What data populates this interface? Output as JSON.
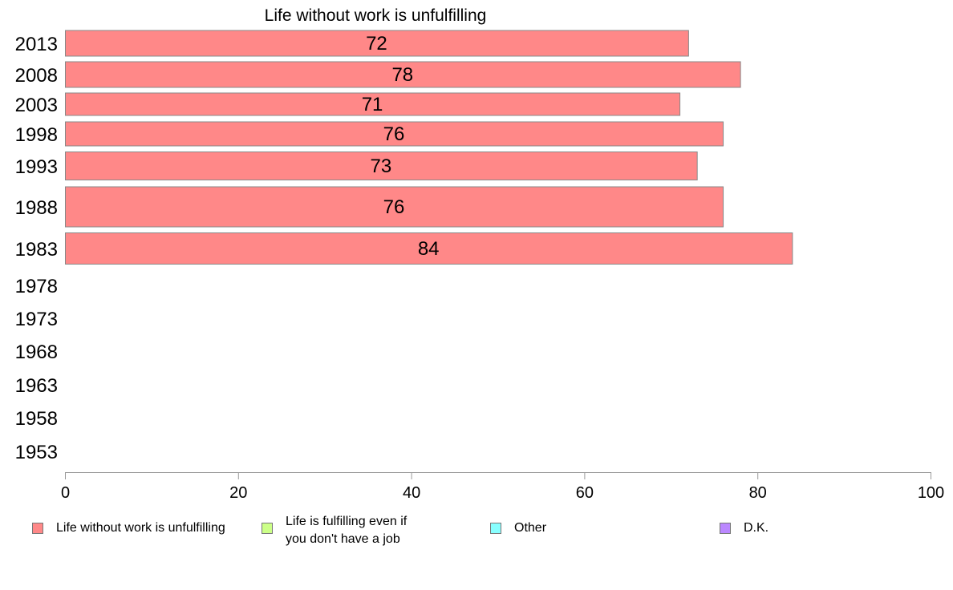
{
  "chart_data": {
    "type": "bar",
    "orientation": "horizontal",
    "title": "Life without work is unfulfilling",
    "categories": [
      "2013",
      "2008",
      "2003",
      "1998",
      "1993",
      "1988",
      "1983",
      "1978",
      "1973",
      "1968",
      "1963",
      "1958",
      "1953"
    ],
    "series": [
      {
        "name": "Life without work is unfulfilling",
        "color": "#ff8888",
        "values": [
          72,
          78,
          71,
          76,
          73,
          76,
          84,
          null,
          null,
          null,
          null,
          null,
          null
        ],
        "labels": [
          "72",
          "78",
          "71",
          "76",
          "73",
          "76",
          "84",
          "",
          "",
          "",
          "",
          "",
          ""
        ]
      }
    ],
    "xlim": [
      0,
      100
    ],
    "xticks": [
      "0",
      "20",
      "40",
      "60",
      "80",
      "100"
    ],
    "grid": false,
    "legend_position": "bottom",
    "legend": [
      {
        "label": "Life without work is unfulfilling",
        "color": "#ff8888"
      },
      {
        "label": "Life is fulfilling even if\nyou don't have a job",
        "color": "#ccff88"
      },
      {
        "label": "Other",
        "color": "#88ffff"
      },
      {
        "label": "D.K.",
        "color": "#bb88ff"
      }
    ]
  }
}
